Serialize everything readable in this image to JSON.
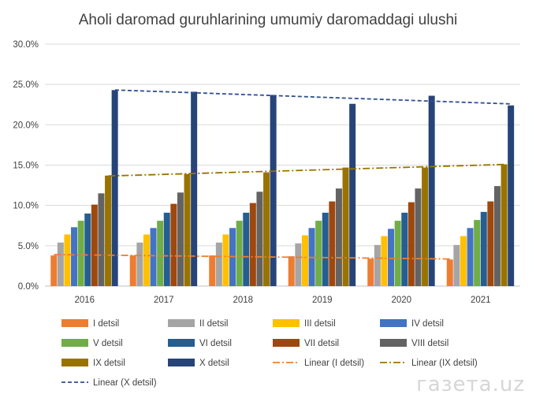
{
  "chart_data": {
    "type": "bar",
    "title": "Aholi daromad guruhlarining umumiy daromaddagi ulushi",
    "categories": [
      "2016",
      "2017",
      "2018",
      "2019",
      "2020",
      "2021"
    ],
    "ylim": [
      0,
      30
    ],
    "yticks": [
      0,
      5,
      10,
      15,
      20,
      25,
      30
    ],
    "ytick_labels": [
      "0.0%",
      "5.0%",
      "10.0%",
      "15.0%",
      "20.0%",
      "25.0%",
      "30.0%"
    ],
    "grid": true,
    "legend_position": "bottom",
    "series": [
      {
        "name": "I detsil",
        "color": "#ED7D31",
        "values": [
          3.8,
          3.8,
          3.8,
          3.7,
          3.4,
          3.3
        ]
      },
      {
        "name": "II detsil",
        "color": "#A5A5A5",
        "values": [
          5.4,
          5.4,
          5.4,
          5.3,
          5.1,
          5.1
        ]
      },
      {
        "name": "III detsil",
        "color": "#FFC000",
        "values": [
          6.4,
          6.4,
          6.4,
          6.3,
          6.2,
          6.2
        ]
      },
      {
        "name": "IV detsil",
        "color": "#4472C4",
        "values": [
          7.3,
          7.2,
          7.2,
          7.2,
          7.1,
          7.2
        ]
      },
      {
        "name": "V detsil",
        "color": "#70AD47",
        "values": [
          8.1,
          8.1,
          8.1,
          8.1,
          8.1,
          8.2
        ]
      },
      {
        "name": "VI  detsil",
        "color": "#255E91",
        "values": [
          9.0,
          9.1,
          9.1,
          9.1,
          9.1,
          9.2
        ]
      },
      {
        "name": "VII  detsil",
        "color": "#9E480E",
        "values": [
          10.1,
          10.2,
          10.3,
          10.5,
          10.4,
          10.5
        ]
      },
      {
        "name": "VIII detsil",
        "color": "#636363",
        "values": [
          11.5,
          11.6,
          11.7,
          12.1,
          12.1,
          12.4
        ]
      },
      {
        "name": "IX detsil",
        "color": "#997300",
        "values": [
          13.7,
          13.9,
          14.1,
          14.7,
          14.7,
          15.1
        ]
      },
      {
        "name": "X detsil",
        "color": "#264478",
        "values": [
          24.3,
          24.1,
          23.7,
          22.6,
          23.6,
          22.4
        ]
      }
    ],
    "trendlines": [
      {
        "name": "Linear (I detsil)",
        "color": "#ED7D31",
        "style": "dash-dot",
        "series": "I detsil"
      },
      {
        "name": "Linear (IX detsil)",
        "color": "#997300",
        "style": "dash-dot",
        "series": "IX detsil"
      },
      {
        "name": "Linear (X detsil)",
        "color": "#2F4F8F",
        "style": "dash",
        "series": "X detsil"
      }
    ]
  },
  "watermark": "газета.uz"
}
